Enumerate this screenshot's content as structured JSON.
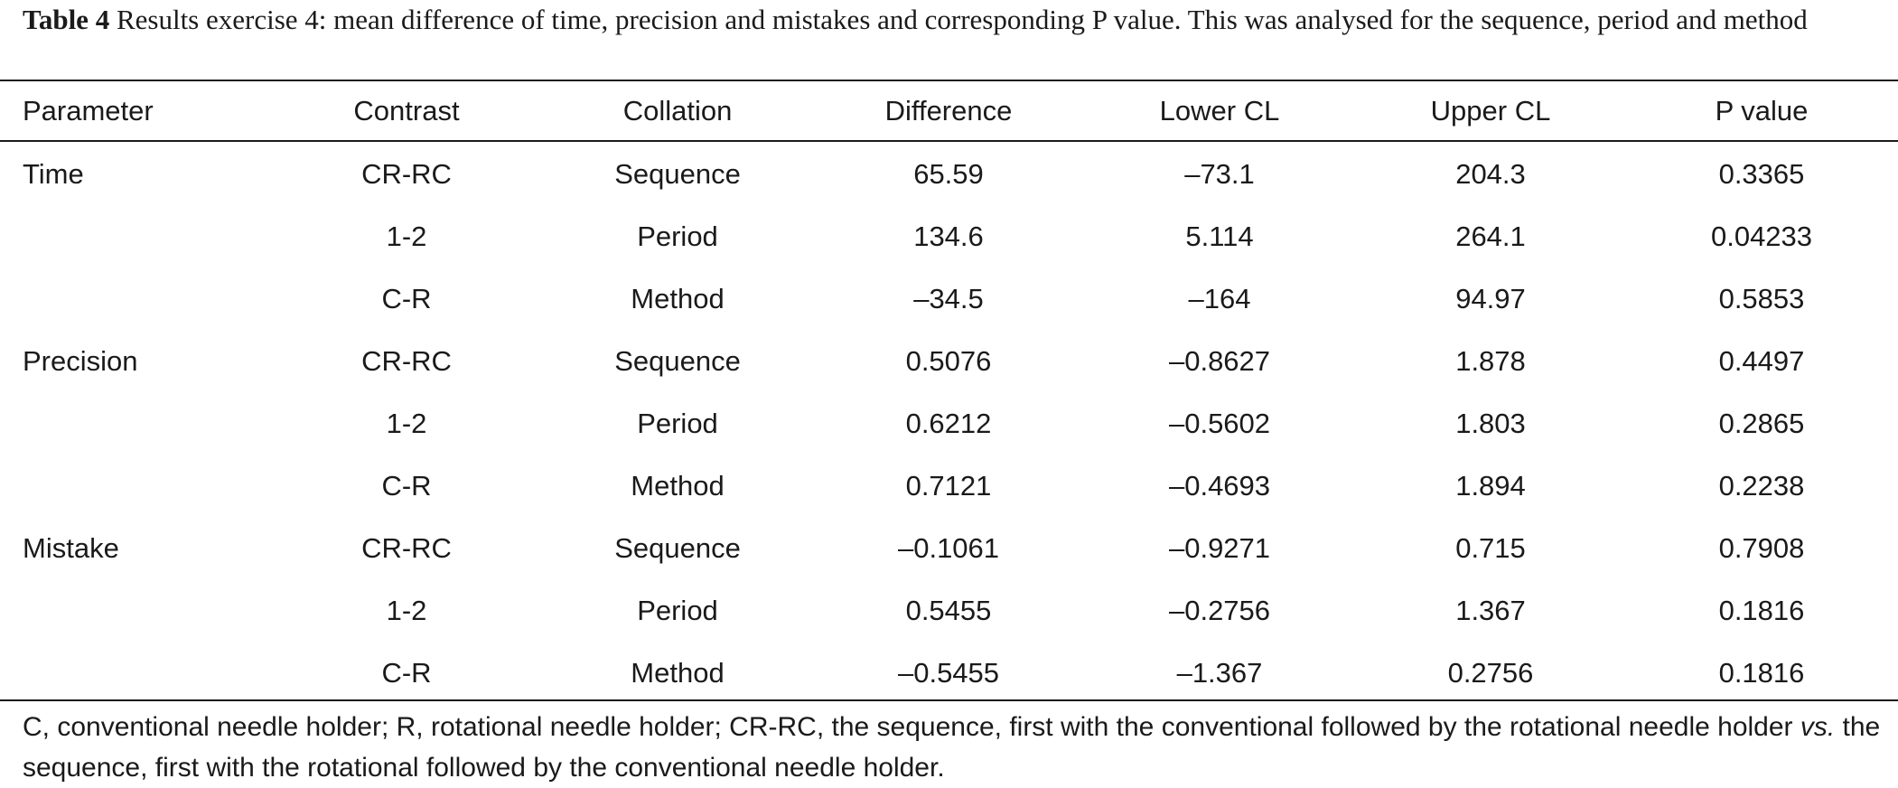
{
  "caption": {
    "label": "Table 4",
    "text": "Results exercise 4: mean difference of time, precision and mistakes and corresponding P value. This was analysed for the sequence, period and method"
  },
  "table": {
    "headers": [
      "Parameter",
      "Contrast",
      "Collation",
      "Difference",
      "Lower CL",
      "Upper CL",
      "P value"
    ],
    "rows": [
      [
        "Time",
        "CR-RC",
        "Sequence",
        "65.59",
        "–73.1",
        "204.3",
        "0.3365"
      ],
      [
        "",
        "1-2",
        "Period",
        "134.6",
        "5.114",
        "264.1",
        "0.04233"
      ],
      [
        "",
        "C-R",
        "Method",
        "–34.5",
        "–164",
        "94.97",
        "0.5853"
      ],
      [
        "Precision",
        "CR-RC",
        "Sequence",
        "0.5076",
        "–0.8627",
        "1.878",
        "0.4497"
      ],
      [
        "",
        "1-2",
        "Period",
        "0.6212",
        "–0.5602",
        "1.803",
        "0.2865"
      ],
      [
        "",
        "C-R",
        "Method",
        "0.7121",
        "–0.4693",
        "1.894",
        "0.2238"
      ],
      [
        "Mistake",
        "CR-RC",
        "Sequence",
        "–0.1061",
        "–0.9271",
        "0.715",
        "0.7908"
      ],
      [
        "",
        "1-2",
        "Period",
        "0.5455",
        "–0.2756",
        "1.367",
        "0.1816"
      ],
      [
        "",
        "C-R",
        "Method",
        "–0.5455",
        "–1.367",
        "0.2756",
        "0.1816"
      ]
    ]
  },
  "footnote": {
    "part1": "C, conventional needle holder; R, rotational needle holder; CR-RC, the sequence, first with the conventional followed by the rotational needle holder ",
    "vs": "vs.",
    "part2": " the sequence, first with the rotational followed by the conventional needle holder."
  }
}
